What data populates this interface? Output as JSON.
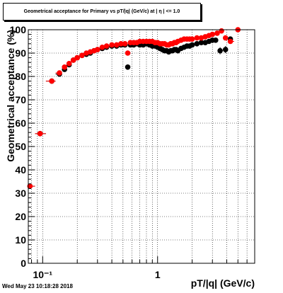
{
  "title": "Geometrical acceptance for Primary vs pT/|q| (GeV/c) at | η | <= 1.0",
  "timestamp": "Wed May 23 10:18:28 2018",
  "chart_data": {
    "type": "scatter",
    "title": "Geometrical acceptance for Primary vs pT/|q| (GeV/c) at | η | <= 1.0",
    "xlabel": "pT/|q| (GeV/c)",
    "ylabel": "Geometrical acceptance (%)",
    "x_scale": "log",
    "xlim": [
      0.075,
      7.0
    ],
    "ylim": [
      0,
      100
    ],
    "x_tick_labels": [
      "10⁻¹",
      "1"
    ],
    "y_ticks": [
      0,
      10,
      20,
      30,
      40,
      50,
      60,
      70,
      80,
      90,
      100
    ],
    "grid": true,
    "series": [
      {
        "color": "#000000",
        "points": [
          [
            0.0775,
            33.0
          ],
          [
            0.095,
            55.5
          ],
          [
            0.12,
            78.0
          ],
          [
            0.14,
            81.0
          ],
          [
            0.155,
            83.0
          ],
          [
            0.17,
            85.0
          ],
          [
            0.185,
            87.0
          ],
          [
            0.2,
            88.0
          ],
          [
            0.22,
            89.0
          ],
          [
            0.24,
            89.5
          ],
          [
            0.26,
            90.0
          ],
          [
            0.28,
            91.0
          ],
          [
            0.3,
            91.5
          ],
          [
            0.33,
            92.0
          ],
          [
            0.36,
            92.5
          ],
          [
            0.4,
            93.0
          ],
          [
            0.44,
            93.0
          ],
          [
            0.48,
            93.5
          ],
          [
            0.52,
            93.5
          ],
          [
            0.55,
            84.0
          ],
          [
            0.58,
            93.5
          ],
          [
            0.62,
            93.5
          ],
          [
            0.66,
            94.0
          ],
          [
            0.7,
            93.5
          ],
          [
            0.75,
            93.5
          ],
          [
            0.8,
            94.0
          ],
          [
            0.85,
            93.5
          ],
          [
            0.9,
            93.0
          ],
          [
            0.95,
            93.0
          ],
          [
            1.0,
            92.5
          ],
          [
            1.05,
            92.0
          ],
          [
            1.1,
            91.5
          ],
          [
            1.15,
            91.0
          ],
          [
            1.2,
            91.0
          ],
          [
            1.25,
            90.5
          ],
          [
            1.3,
            91.0
          ],
          [
            1.35,
            91.0
          ],
          [
            1.4,
            91.5
          ],
          [
            1.45,
            91.5
          ],
          [
            1.5,
            91.0
          ],
          [
            1.6,
            92.0
          ],
          [
            1.7,
            92.5
          ],
          [
            1.8,
            93.0
          ],
          [
            1.9,
            93.0
          ],
          [
            2.0,
            93.5
          ],
          [
            2.2,
            94.0
          ],
          [
            2.4,
            94.5
          ],
          [
            2.6,
            94.5
          ],
          [
            2.8,
            95.0
          ],
          [
            3.0,
            95.5
          ],
          [
            3.2,
            95.5
          ],
          [
            3.5,
            91.0
          ],
          [
            3.9,
            91.5
          ],
          [
            4.3,
            96.0
          ]
        ]
      },
      {
        "color": "#ff0000",
        "points": [
          [
            0.0775,
            33.0
          ],
          [
            0.095,
            55.5
          ],
          [
            0.12,
            78.0
          ],
          [
            0.14,
            81.5
          ],
          [
            0.155,
            84.0
          ],
          [
            0.17,
            85.5
          ],
          [
            0.185,
            87.0
          ],
          [
            0.2,
            88.0
          ],
          [
            0.22,
            89.0
          ],
          [
            0.24,
            90.0
          ],
          [
            0.26,
            90.5
          ],
          [
            0.28,
            91.0
          ],
          [
            0.3,
            91.5
          ],
          [
            0.33,
            92.5
          ],
          [
            0.36,
            93.0
          ],
          [
            0.4,
            93.5
          ],
          [
            0.44,
            93.5
          ],
          [
            0.48,
            94.0
          ],
          [
            0.52,
            94.0
          ],
          [
            0.55,
            90.0
          ],
          [
            0.58,
            94.5
          ],
          [
            0.62,
            94.5
          ],
          [
            0.66,
            94.5
          ],
          [
            0.7,
            95.0
          ],
          [
            0.75,
            95.0
          ],
          [
            0.8,
            95.0
          ],
          [
            0.85,
            95.0
          ],
          [
            0.9,
            95.0
          ],
          [
            0.95,
            94.5
          ],
          [
            1.0,
            94.5
          ],
          [
            1.05,
            94.0
          ],
          [
            1.1,
            94.0
          ],
          [
            1.15,
            94.0
          ],
          [
            1.2,
            93.5
          ],
          [
            1.25,
            93.5
          ],
          [
            1.3,
            94.0
          ],
          [
            1.35,
            94.0
          ],
          [
            1.4,
            94.5
          ],
          [
            1.45,
            94.5
          ],
          [
            1.5,
            95.0
          ],
          [
            1.6,
            95.5
          ],
          [
            1.7,
            96.0
          ],
          [
            1.8,
            96.0
          ],
          [
            1.9,
            96.0
          ],
          [
            2.0,
            96.0
          ],
          [
            2.2,
            96.5
          ],
          [
            2.4,
            96.5
          ],
          [
            2.6,
            97.0
          ],
          [
            2.8,
            97.5
          ],
          [
            3.0,
            98.0
          ],
          [
            3.3,
            98.5
          ],
          [
            3.6,
            99.5
          ],
          [
            3.9,
            96.5
          ],
          [
            4.3,
            95.0
          ],
          [
            5.0,
            100.0
          ]
        ]
      }
    ]
  }
}
